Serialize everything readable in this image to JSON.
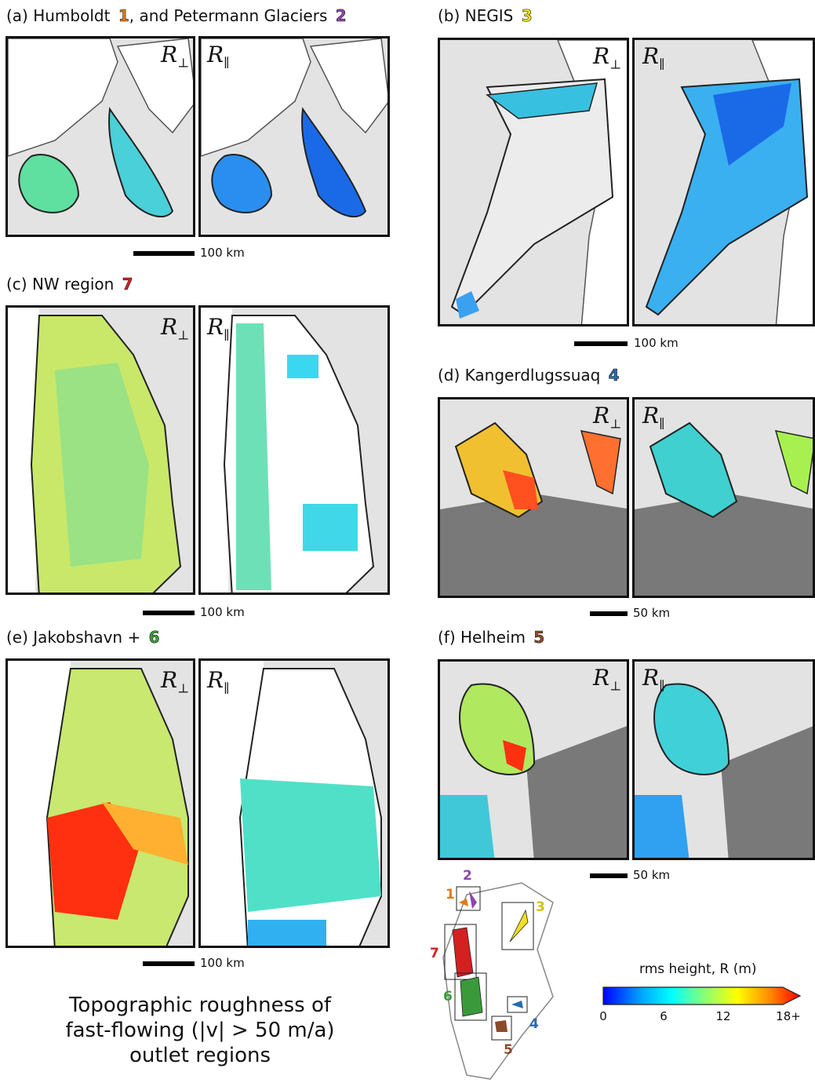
{
  "panels": {
    "a": {
      "title": "(a) Humboldt ",
      "num1": "1",
      "mid": ", and Petermann Glaciers ",
      "num2": "2",
      "scale": "100 km"
    },
    "b": {
      "title": "(b) NEGIS ",
      "num1": "3",
      "scale": "100 km"
    },
    "c": {
      "title": "(c) NW region ",
      "num1": "7",
      "scale": "100 km"
    },
    "d": {
      "title": "(d) Kangerdlugssuaq ",
      "num1": "4",
      "scale": "50 km"
    },
    "e": {
      "title": "(e) Jakobshavn + ",
      "num1": "6",
      "scale": "100 km"
    },
    "f": {
      "title": "(f) Helheim ",
      "num1": "5",
      "scale": "50 km"
    }
  },
  "labels": {
    "r_perp": "R",
    "r_perp_sub": "⊥",
    "r_par": "R",
    "r_par_sub": "∥"
  },
  "caption": {
    "line1": "Topographic roughness of",
    "line2": "fast-flowing (|v| > 50 m/a)",
    "line3": "outlet regions"
  },
  "colorbar": {
    "title": "rms height, R (m)",
    "ticks": [
      "0",
      "6",
      "12",
      "18+"
    ],
    "colors": [
      "#0000ff",
      "#00aaff",
      "#00ffff",
      "#7fff7f",
      "#ffff00",
      "#ff8800",
      "#ff0000"
    ]
  },
  "map_numbers": [
    "1",
    "2",
    "3",
    "4",
    "5",
    "6",
    "7"
  ],
  "region_colors": {
    "1": "#e07b1a",
    "2": "#8e44ad",
    "3": "#f0e020",
    "4": "#2a6ab0",
    "5": "#8b4a2b",
    "6": "#3a9a3a",
    "7": "#d42020"
  }
}
